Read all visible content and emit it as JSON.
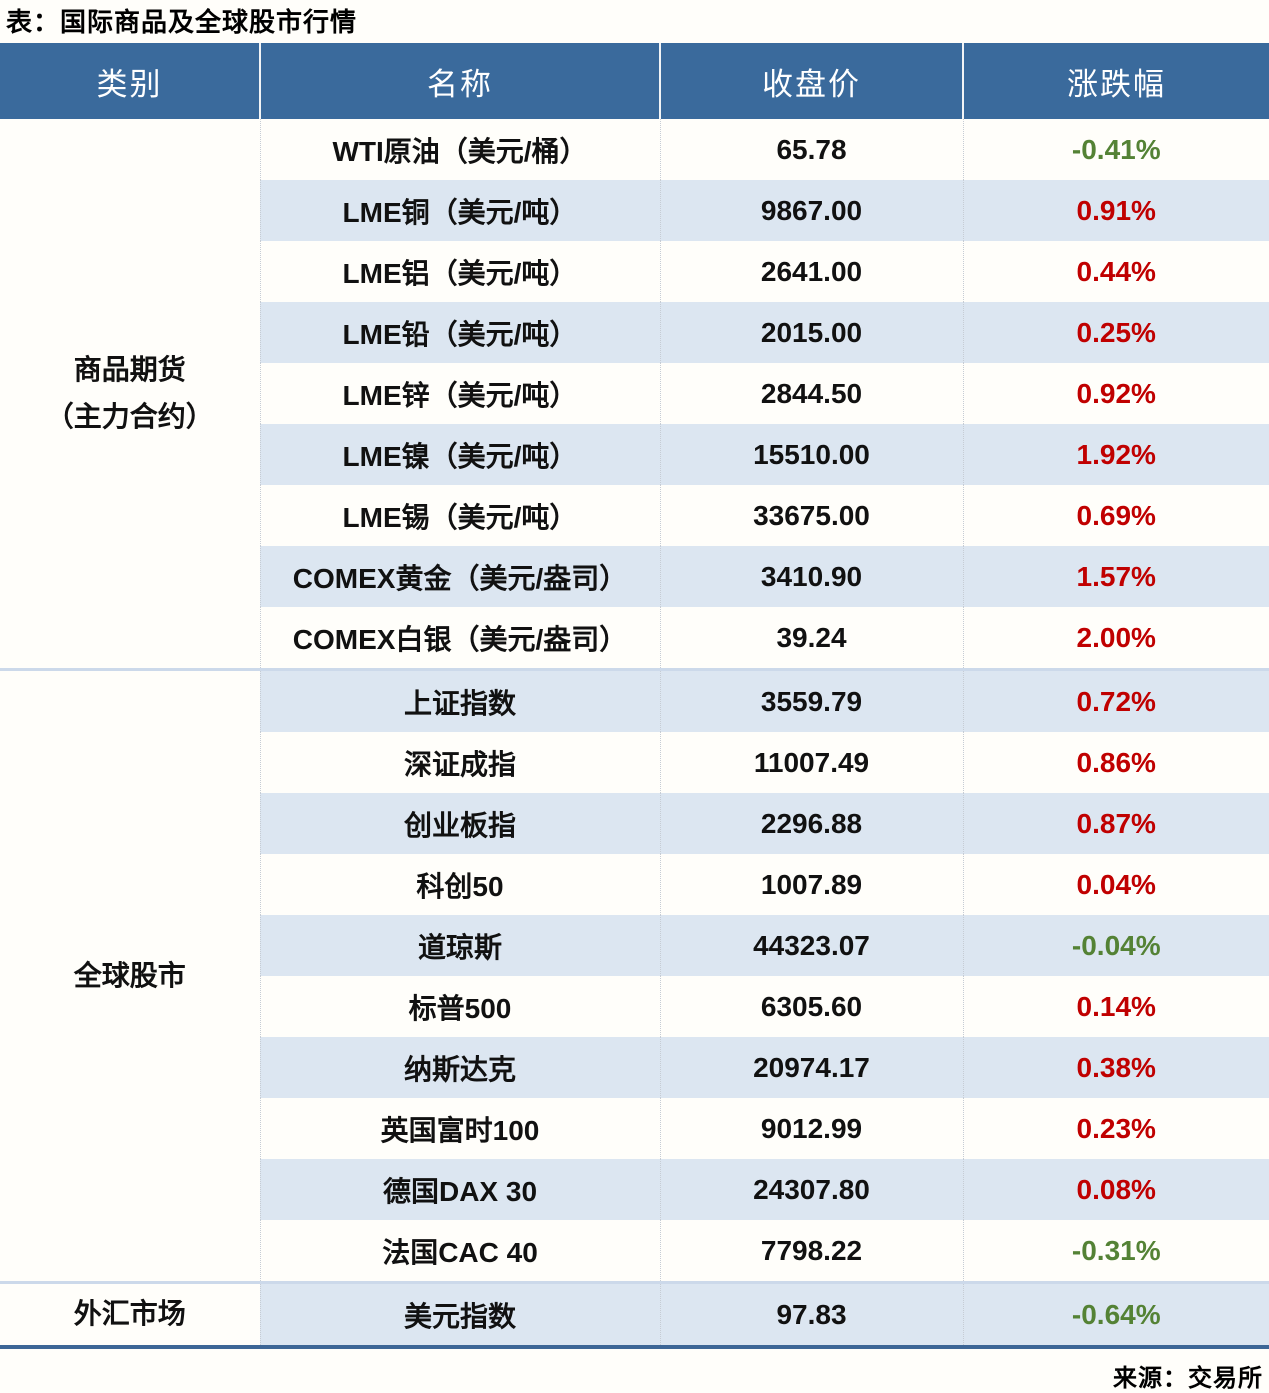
{
  "colors": {
    "header_bg": "#3a6a9c",
    "row_stripe": "#dce6f1",
    "up_red": "#c00000",
    "down_green": "#548235",
    "bottom_border": "#3d6696"
  },
  "chart_data": {
    "type": "table",
    "title": "表：国际商品及全球股市行情",
    "source": "来源：交易所",
    "columns": [
      "类别",
      "名称",
      "收盘价",
      "涨跌幅"
    ],
    "groups": [
      {
        "category": "商品期货\n（主力合约）",
        "rowspan": 9
      },
      {
        "category": "全球股市",
        "rowspan": 10
      },
      {
        "category": "外汇市场",
        "rowspan": 1
      }
    ],
    "rows": [
      {
        "name": "WTI原油（美元/桶）",
        "close": "65.78",
        "change": "-0.41%"
      },
      {
        "name": "LME铜（美元/吨）",
        "close": "9867.00",
        "change": "0.91%"
      },
      {
        "name": "LME铝（美元/吨）",
        "close": "2641.00",
        "change": "0.44%"
      },
      {
        "name": "LME铅（美元/吨）",
        "close": "2015.00",
        "change": "0.25%"
      },
      {
        "name": "LME锌（美元/吨）",
        "close": "2844.50",
        "change": "0.92%"
      },
      {
        "name": "LME镍（美元/吨）",
        "close": "15510.00",
        "change": "1.92%"
      },
      {
        "name": "LME锡（美元/吨）",
        "close": "33675.00",
        "change": "0.69%"
      },
      {
        "name": "COMEX黄金（美元/盎司）",
        "close": "3410.90",
        "change": "1.57%"
      },
      {
        "name": "COMEX白银（美元/盎司）",
        "close": "39.24",
        "change": "2.00%"
      },
      {
        "name": "上证指数",
        "close": "3559.79",
        "change": "0.72%"
      },
      {
        "name": "深证成指",
        "close": "11007.49",
        "change": "0.86%"
      },
      {
        "name": "创业板指",
        "close": "2296.88",
        "change": "0.87%"
      },
      {
        "name": "科创50",
        "close": "1007.89",
        "change": "0.04%"
      },
      {
        "name": "道琼斯",
        "close": "44323.07",
        "change": "-0.04%"
      },
      {
        "name": "标普500",
        "close": "6305.60",
        "change": "0.14%"
      },
      {
        "name": "纳斯达克",
        "close": "20974.17",
        "change": "0.38%"
      },
      {
        "name": "英国富时100",
        "close": "9012.99",
        "change": "0.23%"
      },
      {
        "name": "德国DAX 30",
        "close": "24307.80",
        "change": "0.08%"
      },
      {
        "name": "法国CAC 40",
        "close": "7798.22",
        "change": "-0.31%"
      },
      {
        "name": "美元指数",
        "close": "97.83",
        "change": "-0.64%"
      }
    ]
  }
}
